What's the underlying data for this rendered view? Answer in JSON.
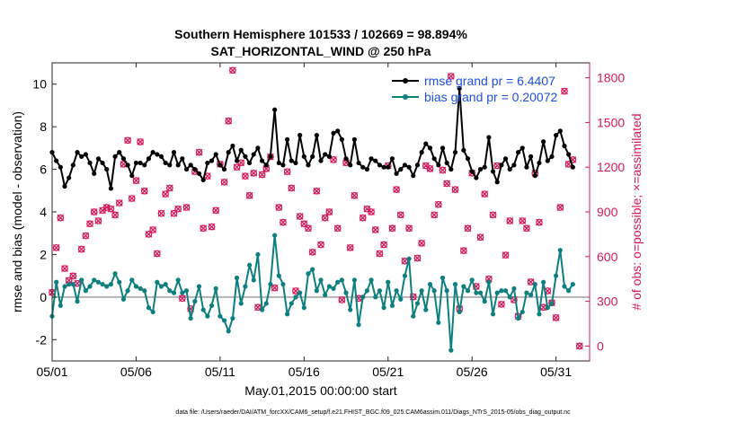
{
  "chart_data": {
    "type": "line",
    "title_line1": "Southern Hemisphere 101533 / 102669 = 98.894%",
    "title_line2": "SAT_HORIZONTAL_WIND @ 250 hPa",
    "xlabel": "May.01,2015 00:00:00 start",
    "ylabel": "rmse and bias (model - observation)",
    "y2label": "# of obs: o=possible; ×=assimilated",
    "footnote": "data file: /Users/raeder/DAI/ATM_forcXX/CAM6_setup/f.e21.FHIST_BGC.f09_025.CAM6assim.011/Diags_NTrS_2015-05/obs_diag_output.nc",
    "xlim": [
      0,
      32
    ],
    "ylim": [
      -3,
      11
    ],
    "y2lim": [
      -100,
      1900
    ],
    "x_ticks": [
      0,
      5,
      10,
      15,
      20,
      25,
      30
    ],
    "x_tick_labels": [
      "05/01",
      "05/06",
      "05/11",
      "05/16",
      "05/21",
      "05/26",
      "05/31"
    ],
    "y_ticks": [
      -2,
      0,
      2,
      4,
      6,
      8,
      10
    ],
    "y2_ticks": [
      0,
      300,
      600,
      900,
      1200,
      1500,
      1800
    ],
    "colors": {
      "rmse": "#000000",
      "bias": "#0d7f7f",
      "obs": "#d6185c",
      "zero_line": "#b3b3b3",
      "legend_text": "#1f4fe0",
      "right_axis": "#d6185c"
    },
    "legend": [
      {
        "label": "rmse grand pr = 6.4407",
        "series": "rmse"
      },
      {
        "label": "bias grand pr = 0.20072",
        "series": "bias"
      }
    ],
    "x": [
      0.0,
      0.25,
      0.5,
      0.75,
      1.0,
      1.25,
      1.5,
      1.75,
      2.0,
      2.25,
      2.5,
      2.75,
      3.0,
      3.25,
      3.5,
      3.75,
      4.0,
      4.25,
      4.5,
      4.75,
      5.0,
      5.25,
      5.5,
      5.75,
      6.0,
      6.25,
      6.5,
      6.75,
      7.0,
      7.25,
      7.5,
      7.75,
      8.0,
      8.25,
      8.5,
      8.75,
      9.0,
      9.25,
      9.5,
      9.75,
      10.0,
      10.25,
      10.5,
      10.75,
      11.0,
      11.25,
      11.5,
      11.75,
      12.0,
      12.25,
      12.5,
      12.75,
      13.0,
      13.25,
      13.5,
      13.75,
      14.0,
      14.25,
      14.5,
      14.75,
      15.0,
      15.25,
      15.5,
      15.75,
      16.0,
      16.25,
      16.5,
      16.75,
      17.0,
      17.25,
      17.5,
      17.75,
      18.0,
      18.25,
      18.5,
      18.75,
      19.0,
      19.25,
      19.5,
      19.75,
      20.0,
      20.25,
      20.5,
      20.75,
      21.0,
      21.25,
      21.5,
      21.75,
      22.0,
      22.25,
      22.5,
      22.75,
      23.0,
      23.25,
      23.5,
      23.75,
      24.0,
      24.25,
      24.5,
      24.75,
      25.0,
      25.25,
      25.5,
      25.75,
      26.0,
      26.25,
      26.5,
      26.75,
      27.0,
      27.25,
      27.5,
      27.75,
      28.0,
      28.25,
      28.5,
      28.75,
      29.0,
      29.25,
      29.5,
      29.75,
      30.0,
      30.25,
      30.5,
      30.75,
      31.0
    ],
    "series": [
      {
        "name": "rmse",
        "values": [
          6.8,
          6.4,
          6.1,
          5.2,
          5.6,
          6.2,
          6.8,
          6.6,
          6.7,
          6.3,
          5.8,
          6.5,
          6.3,
          6.0,
          5.1,
          6.6,
          6.8,
          6.5,
          6.2,
          5.7,
          6.3,
          6.3,
          6.2,
          6.5,
          6.8,
          6.7,
          6.6,
          6.3,
          6.2,
          6.8,
          6.2,
          6.5,
          6.0,
          6.2,
          6.0,
          5.8,
          5.5,
          6.3,
          6.4,
          6.7,
          6.2,
          6.0,
          6.8,
          7.1,
          6.4,
          6.9,
          6.6,
          6.3,
          6.7,
          7.0,
          6.4,
          6.2,
          6.6,
          8.8,
          6.3,
          6.2,
          7.4,
          6.4,
          6.3,
          7.6,
          6.6,
          6.2,
          6.6,
          7.6,
          6.4,
          6.7,
          6.6,
          7.7,
          7.8,
          7.4,
          6.5,
          6.2,
          7.4,
          6.3,
          6.1,
          6.0,
          6.5,
          6.4,
          6.2,
          6.1,
          6.1,
          6.5,
          5.8,
          6.0,
          6.2,
          6.1,
          5.7,
          6.2,
          6.8,
          7.2,
          7.0,
          6.5,
          6.2,
          7.0,
          6.3,
          6.0,
          6.8,
          9.8,
          6.9,
          6.5,
          5.9,
          5.6,
          6.0,
          6.1,
          7.5,
          5.9,
          5.4,
          6.2,
          6.5,
          6.0,
          6.2,
          6.8,
          7.0,
          6.1,
          6.6,
          5.7,
          6.3,
          7.3,
          6.4,
          6.6,
          7.6,
          7.8,
          7.1,
          6.7,
          6.1
        ]
      },
      {
        "name": "bias",
        "values": [
          -0.9,
          0.7,
          -0.4,
          0.5,
          0.6,
          0.6,
          -0.2,
          0.8,
          0.3,
          0.5,
          0.8,
          0.7,
          0.6,
          0.5,
          0.6,
          1.1,
          0.7,
          -0.1,
          0.3,
          0.8,
          0.5,
          0.4,
          0.3,
          -0.5,
          -0.7,
          0.7,
          0.5,
          0.6,
          0.3,
          0.2,
          0.8,
          0.2,
          0.3,
          -1.0,
          -0.2,
          0.5,
          -0.6,
          -0.9,
          -0.4,
          0.4,
          -0.9,
          -1.1,
          -1.6,
          -1.0,
          0.9,
          -0.3,
          0.5,
          1.5,
          0.8,
          2.0,
          -0.6,
          -0.3,
          0.6,
          2.9,
          1.0,
          0.6,
          -0.8,
          -0.3,
          0.0,
          0.2,
          -0.5,
          1.1,
          1.3,
          0.3,
          0.8,
          0.1,
          0.5,
          0.4,
          0.7,
          0.8,
          0.2,
          -0.6,
          0.8,
          -1.3,
          0.0,
          0.3,
          0.8,
          0.0,
          0.3,
          -0.5,
          0.7,
          -0.4,
          0.3,
          -0.1,
          1.0,
          1.8,
          -0.9,
          -0.3,
          0.3,
          -0.6,
          0.6,
          0.3,
          -1.2,
          0.9,
          0.3,
          -2.5,
          0.6,
          -0.7,
          0.5,
          0.3,
          0.8,
          0.2,
          0.2,
          -0.2,
          0.7,
          -0.8,
          0.2,
          0.3,
          0.3,
          0.0,
          0.4,
          -1.0,
          -0.7,
          0.2,
          0.1,
          0.6,
          -0.8,
          0.7,
          -0.5,
          -0.3,
          1.0,
          2.2,
          0.5,
          0.3,
          0.6
        ]
      },
      {
        "name": "obs_count",
        "values": [
          360,
          660,
          860,
          520,
          440,
          470,
          420,
          650,
          740,
          820,
          900,
          840,
          910,
          930,
          920,
          880,
          960,
          1220,
          1380,
          990,
          1110,
          1370,
          1040,
          750,
          780,
          620,
          890,
          1020,
          1060,
          890,
          920,
          320,
          930,
          250,
          1170,
          1300,
          790,
          1140,
          800,
          910,
          1220,
          1100,
          1510,
          1850,
          1200,
          1230,
          1140,
          1010,
          1160,
          260,
          1150,
          1190,
          1270,
          390,
          930,
          830,
          1170,
          1060,
          370,
          870,
          820,
          790,
          630,
          1040,
          680,
          860,
          900,
          1250,
          790,
          310,
          1230,
          660,
          1010,
          320,
          860,
          920,
          900,
          780,
          620,
          680,
          1210,
          790,
          1050,
          880,
          570,
          790,
          330,
          590,
          690,
          1210,
          1190,
          880,
          950,
          1180,
          1090,
          1810,
          1050,
          250,
          640,
          790,
          1160,
          400,
          730,
          1020,
          450,
          880,
          1210,
          280,
          610,
          840,
          310,
          200,
          840,
          790,
          430,
          1160,
          830,
          260,
          370,
          290,
          190,
          930,
          1710,
          1220,
          1250
        ]
      }
    ],
    "obs_count_extra_point": {
      "x": 31.4,
      "value": 0
    }
  }
}
